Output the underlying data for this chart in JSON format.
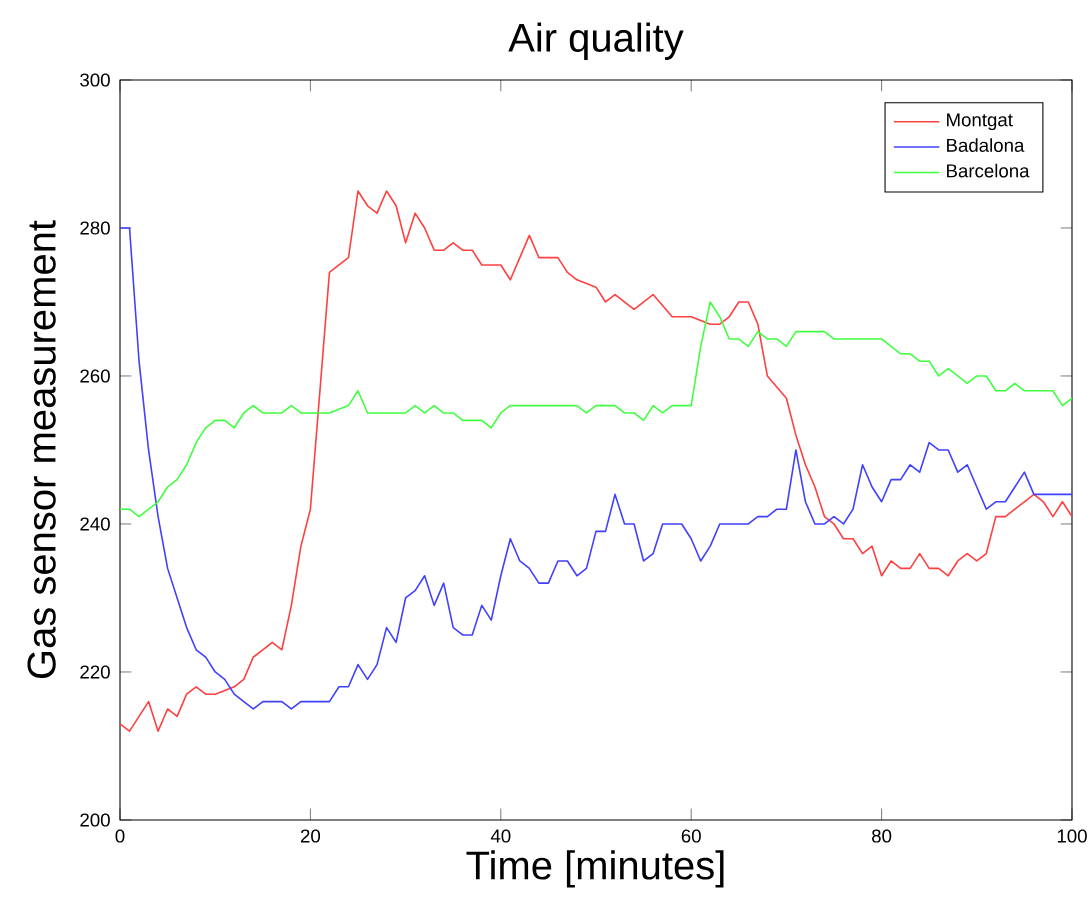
{
  "chart_data": {
    "type": "line",
    "title": "Air quality",
    "xlabel": "Time [minutes]",
    "ylabel": "Gas sensor measurement",
    "xlim": [
      0,
      100
    ],
    "ylim": [
      200,
      300
    ],
    "xticks": [
      0,
      20,
      40,
      60,
      80,
      100
    ],
    "yticks": [
      200,
      220,
      240,
      260,
      280,
      300
    ],
    "legend": "top right",
    "grid": false,
    "series": [
      {
        "name": "Montgat",
        "color": "#ff4040",
        "x": [
          0,
          1,
          3,
          4,
          5,
          6,
          7,
          8,
          9,
          10,
          12,
          13,
          14,
          15,
          16,
          17,
          18,
          19,
          20,
          21,
          22,
          23,
          24,
          25,
          26,
          27,
          28,
          29,
          30,
          31,
          32,
          33,
          34,
          35,
          36,
          37,
          38,
          40,
          41,
          42,
          43,
          44,
          46,
          47,
          48,
          50,
          51,
          52,
          54,
          56,
          58,
          60,
          62,
          63,
          64,
          65,
          66,
          67,
          68,
          70,
          71,
          72,
          73,
          74,
          75,
          76,
          77,
          78,
          79,
          80,
          81,
          82,
          83,
          84,
          85,
          86,
          87,
          88,
          89,
          90,
          91,
          92,
          93,
          95,
          96,
          97,
          98,
          99,
          100
        ],
        "values": [
          213,
          212,
          216,
          212,
          215,
          214,
          217,
          218,
          217,
          217,
          218,
          219,
          222,
          223,
          224,
          223,
          229,
          237,
          242,
          258,
          274,
          275,
          276,
          285,
          283,
          282,
          285,
          283,
          278,
          282,
          280,
          277,
          277,
          278,
          277,
          277,
          275,
          275,
          273,
          276,
          279,
          276,
          276,
          274,
          273,
          272,
          270,
          271,
          269,
          271,
          268,
          268,
          267,
          267,
          268,
          270,
          270,
          267,
          260,
          257,
          252,
          248,
          245,
          241,
          240,
          238,
          238,
          236,
          237,
          233,
          235,
          234,
          234,
          236,
          234,
          234,
          233,
          235,
          236,
          235,
          236,
          241,
          241,
          243,
          244,
          243,
          241,
          243,
          241
        ]
      },
      {
        "name": "Badalona",
        "color": "#4040ff",
        "x": [
          0,
          1,
          2,
          3,
          4,
          5,
          6,
          7,
          8,
          9,
          10,
          11,
          12,
          13,
          14,
          15,
          16,
          17,
          18,
          19,
          20,
          22,
          23,
          24,
          25,
          26,
          27,
          28,
          29,
          30,
          31,
          32,
          33,
          34,
          35,
          36,
          37,
          38,
          39,
          40,
          41,
          42,
          43,
          44,
          45,
          46,
          47,
          48,
          49,
          50,
          51,
          52,
          53,
          54,
          55,
          56,
          57,
          58,
          59,
          60,
          61,
          62,
          63,
          64,
          65,
          66,
          67,
          68,
          69,
          70,
          71,
          72,
          73,
          74,
          75,
          76,
          77,
          78,
          79,
          80,
          81,
          82,
          83,
          84,
          85,
          86,
          87,
          88,
          89,
          90,
          91,
          92,
          93,
          94,
          95,
          96,
          97,
          100
        ],
        "values": [
          280,
          280,
          262,
          250,
          241,
          234,
          230,
          226,
          223,
          222,
          220,
          219,
          217,
          216,
          215,
          216,
          216,
          216,
          215,
          216,
          216,
          216,
          218,
          218,
          221,
          219,
          221,
          226,
          224,
          230,
          231,
          233,
          229,
          232,
          226,
          225,
          225,
          229,
          227,
          233,
          238,
          235,
          234,
          232,
          232,
          235,
          235,
          233,
          234,
          239,
          239,
          244,
          240,
          240,
          235,
          236,
          240,
          240,
          240,
          238,
          235,
          237,
          240,
          240,
          240,
          240,
          241,
          241,
          242,
          242,
          250,
          243,
          240,
          240,
          241,
          240,
          242,
          248,
          245,
          243,
          246,
          246,
          248,
          247,
          251,
          250,
          250,
          247,
          248,
          245,
          242,
          243,
          243,
          245,
          247,
          244,
          244,
          244
        ]
      },
      {
        "name": "Barcelona",
        "color": "#40ff40",
        "x": [
          0,
          1,
          2,
          3,
          4,
          5,
          6,
          7,
          8,
          9,
          10,
          11,
          12,
          13,
          14,
          15,
          17,
          18,
          19,
          22,
          24,
          25,
          26,
          30,
          31,
          32,
          33,
          34,
          35,
          36,
          38,
          39,
          40,
          41,
          44,
          46,
          48,
          49,
          50,
          51,
          52,
          53,
          54,
          55,
          56,
          57,
          58,
          60,
          61,
          62,
          63,
          64,
          65,
          66,
          67,
          68,
          69,
          70,
          71,
          72,
          74,
          75,
          80,
          82,
          83,
          84,
          85,
          86,
          87,
          88,
          89,
          90,
          91,
          92,
          93,
          94,
          95,
          98,
          99,
          100
        ],
        "values": [
          242,
          242,
          241,
          242,
          243,
          245,
          246,
          248,
          251,
          253,
          254,
          254,
          253,
          255,
          256,
          255,
          255,
          256,
          255,
          255,
          256,
          258,
          255,
          255,
          256,
          255,
          256,
          255,
          255,
          254,
          254,
          253,
          255,
          256,
          256,
          256,
          256,
          255,
          256,
          256,
          256,
          255,
          255,
          254,
          256,
          255,
          256,
          256,
          264,
          270,
          268,
          265,
          265,
          264,
          266,
          265,
          265,
          264,
          266,
          266,
          266,
          265,
          265,
          263,
          263,
          262,
          262,
          260,
          261,
          260,
          259,
          260,
          260,
          258,
          258,
          259,
          258,
          258,
          256,
          257
        ]
      }
    ]
  }
}
